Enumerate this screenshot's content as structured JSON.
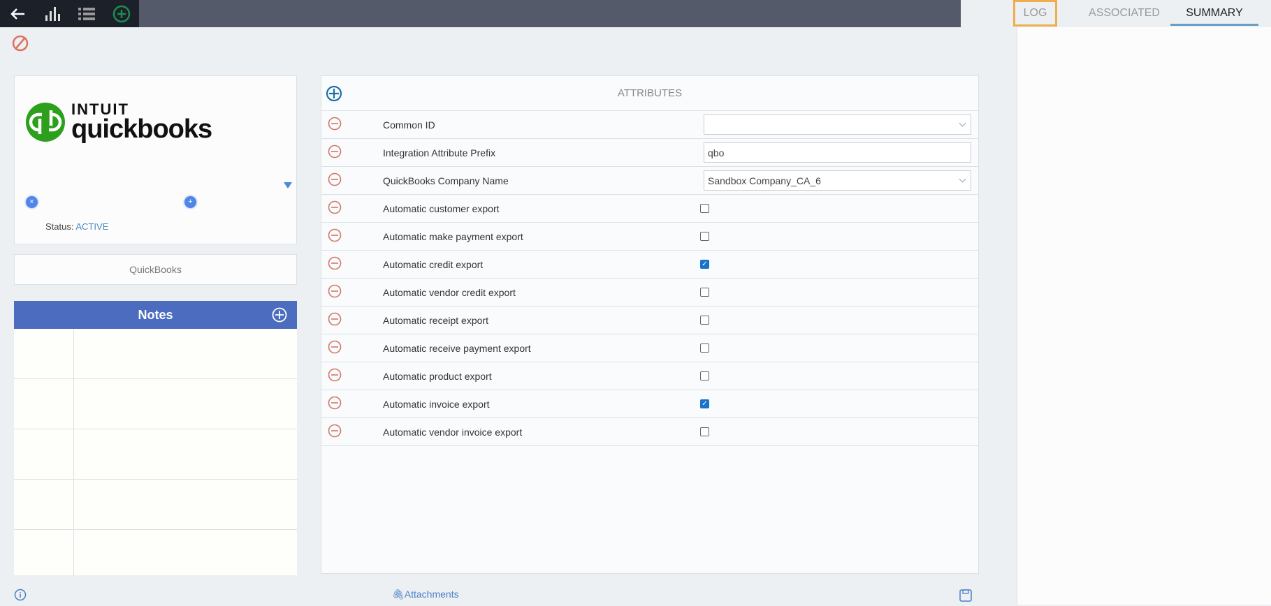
{
  "toolbar": {
    "icons": [
      "back-arrow-icon",
      "bar-chart-icon",
      "list-icon",
      "add-circle-icon"
    ]
  },
  "record": {
    "logo": {
      "line1": "INTUIT",
      "line2": "quickbooks",
      "brand_color": "#2ca01c"
    },
    "status_label": "Status:",
    "status_value": "ACTIVE",
    "name": "QuickBooks"
  },
  "notes": {
    "title": "Notes",
    "rows": 5
  },
  "attributes": {
    "title": "ATTRIBUTES",
    "rows": [
      {
        "label": "Common ID",
        "type": "select",
        "value": ""
      },
      {
        "label": "Integration Attribute Prefix",
        "type": "text",
        "value": "qbo"
      },
      {
        "label": "QuickBooks Company Name",
        "type": "select",
        "value": "Sandbox Company_CA_6"
      },
      {
        "label": "Automatic customer export",
        "type": "checkbox",
        "checked": false
      },
      {
        "label": "Automatic make payment export",
        "type": "checkbox",
        "checked": false
      },
      {
        "label": "Automatic credit export",
        "type": "checkbox",
        "checked": true
      },
      {
        "label": "Automatic vendor credit export",
        "type": "checkbox",
        "checked": false
      },
      {
        "label": "Automatic receipt export",
        "type": "checkbox",
        "checked": false
      },
      {
        "label": "Automatic receive payment export",
        "type": "checkbox",
        "checked": false
      },
      {
        "label": "Automatic product export",
        "type": "checkbox",
        "checked": false
      },
      {
        "label": "Automatic invoice export",
        "type": "checkbox",
        "checked": true
      },
      {
        "label": "Automatic vendor invoice export",
        "type": "checkbox",
        "checked": false
      }
    ]
  },
  "footer": {
    "attachments": "Attachments"
  },
  "tabs": [
    {
      "label": "LOG",
      "highlighted": true
    },
    {
      "label": "ASSOCIATED"
    },
    {
      "label": "SUMMARY",
      "active": true
    }
  ]
}
